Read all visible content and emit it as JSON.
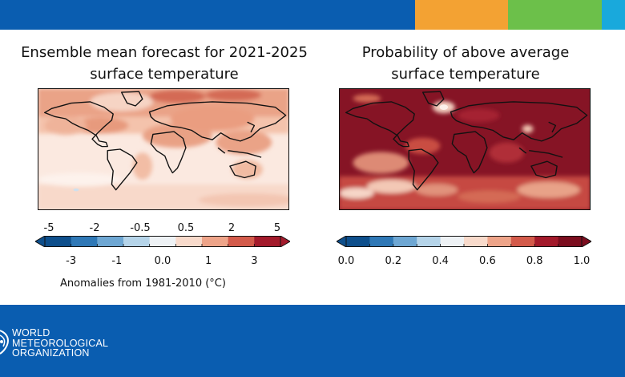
{
  "header_band": {
    "colors": [
      "#0a5db0",
      "#f3a233",
      "#6cc04a",
      "#19a9dc"
    ]
  },
  "footer": {
    "background": "#0a5db0",
    "org_name_lines": [
      "WORLD",
      "METEOROLOGICAL",
      "ORGANIZATION"
    ],
    "logo_icon": "wmo-emblem-icon"
  },
  "chart_data": [
    {
      "type": "heatmap",
      "title_line1": "Ensemble mean forecast for 2021-2025",
      "title_line2": "surface temperature",
      "colorbar": {
        "top_labels": [
          "-5",
          "-2",
          "-0.5",
          "0.5",
          "2",
          "5"
        ],
        "bottom_labels": [
          "-3",
          "-1",
          "0.0",
          "1",
          "3"
        ],
        "caption": "Anomalies from 1981-2010 (°C)",
        "colors": [
          "#0e4f8c",
          "#2f78b6",
          "#6ea7d3",
          "#b5d4e9",
          "#eef2f5",
          "#f8dacb",
          "#eea489",
          "#d35a4a",
          "#a31a2b"
        ]
      }
    },
    {
      "type": "heatmap",
      "title_line1": "Probability of above average",
      "title_line2": "surface temperature",
      "colorbar": {
        "bottom_labels": [
          "0.0",
          "0.2",
          "0.4",
          "0.6",
          "0.8",
          "1.0"
        ],
        "colors": [
          "#0e4f8c",
          "#2f78b6",
          "#6ea7d3",
          "#b5d4e9",
          "#eef2f5",
          "#f8dacb",
          "#eea489",
          "#d35a4a",
          "#a31a2b",
          "#7b0d1e"
        ]
      }
    }
  ]
}
